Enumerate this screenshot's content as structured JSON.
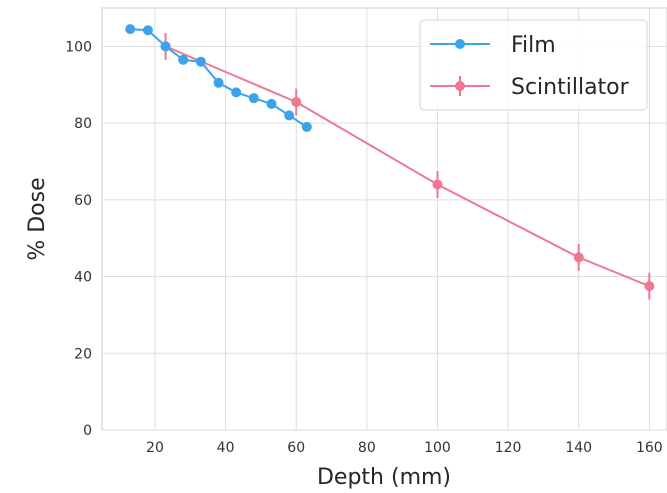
{
  "chart_data": {
    "type": "line",
    "title": "",
    "xlabel": "Depth (mm)",
    "ylabel": "% Dose",
    "xlim": [
      5,
      165
    ],
    "ylim": [
      0,
      110
    ],
    "x_ticks": [
      20,
      40,
      60,
      80,
      100,
      120,
      140,
      160
    ],
    "y_ticks": [
      0,
      20,
      40,
      60,
      80,
      100
    ],
    "grid": true,
    "legend_position": "top-right",
    "series": [
      {
        "name": "Film",
        "color": "#3ba3ec",
        "marker": "circle",
        "x": [
          13,
          18,
          23,
          28,
          33,
          38,
          43,
          48,
          53,
          58,
          63
        ],
        "y": [
          104.5,
          104.2,
          100,
          96.5,
          96,
          90.5,
          88,
          86.5,
          85,
          82,
          79
        ]
      },
      {
        "name": "Scintillator",
        "color": "#f07692",
        "marker": "circle",
        "x": [
          23,
          60,
          100,
          140,
          160
        ],
        "y": [
          100,
          85.5,
          64,
          45,
          37.5
        ],
        "error": [
          3.5,
          3.5,
          3.5,
          3.5,
          3.5
        ]
      }
    ]
  }
}
